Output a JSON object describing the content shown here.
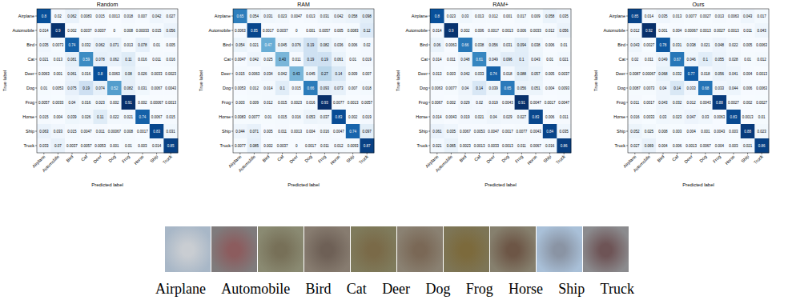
{
  "chart_data": [
    {
      "type": "heatmap",
      "title": "Random",
      "x_label": "Predicted label",
      "y_label": "True label",
      "x_categories": [
        "Airplane",
        "Automobile",
        "Bird",
        "Cat",
        "Deer",
        "Dog",
        "Frog",
        "Horse",
        "Ship",
        "Truck"
      ],
      "y_categories": [
        "Airplane",
        "Automobile",
        "Bird",
        "Cat",
        "Deer",
        "Dog",
        "Frog",
        "Horse",
        "Ship",
        "Truck"
      ],
      "data_labels": true,
      "cells": [
        [
          0.8,
          0.02,
          0.062,
          0.0083,
          0.015,
          0.0013,
          0.018,
          0.007,
          0.042,
          0.027
        ],
        [
          0.014,
          0.9,
          0.002,
          0.0037,
          0.0037,
          0,
          0.008,
          0.00033,
          0.015,
          0.056
        ],
        [
          0.035,
          0.0073,
          0.74,
          0.032,
          0.062,
          0.071,
          0.013,
          0.078,
          0.01,
          0.005
        ],
        [
          0.021,
          0.013,
          0.081,
          0.59,
          0.078,
          0.062,
          0.11,
          0.016,
          0.011,
          0.016
        ],
        [
          0.0063,
          0.001,
          0.061,
          0.016,
          0.8,
          0.0063,
          0.08,
          0.026,
          0.0033,
          0.0023
        ],
        [
          0.01,
          0.0053,
          0.075,
          0.19,
          0.074,
          0.52,
          0.082,
          0.031,
          0.0067,
          0.0043
        ],
        [
          0.0057,
          0.0033,
          0.04,
          0.016,
          0.023,
          0.002,
          0.91,
          0.002,
          0.00067,
          0.0013
        ],
        [
          0.015,
          0.004,
          0.039,
          0.026,
          0.11,
          0.022,
          0.021,
          0.74,
          0.0067,
          0.015
        ],
        [
          0.063,
          0.033,
          0.015,
          0.0047,
          0.011,
          0.00067,
          0.008,
          0.0017,
          0.83,
          0.031
        ],
        [
          0.033,
          0.07,
          0.0037,
          0.0057,
          0.0053,
          0.001,
          0.01,
          0.003,
          0.014,
          0.85
        ]
      ]
    },
    {
      "type": "heatmap",
      "title": "RAM",
      "x_label": "Predicted label",
      "y_label": "True label",
      "x_categories": [
        "Airplane",
        "Automobile",
        "Bird",
        "Cat",
        "Deer",
        "Dog",
        "Frog",
        "Horse",
        "Ship",
        "Truck"
      ],
      "y_categories": [
        "Airplane",
        "Automobile",
        "Bird",
        "Cat",
        "Deer",
        "Dog",
        "Frog",
        "Horse",
        "Ship",
        "Truck"
      ],
      "data_labels": true,
      "cells": [
        [
          0.65,
          0.054,
          0.031,
          0.023,
          0.0047,
          0.013,
          0.031,
          0.042,
          0.058,
          0.098
        ],
        [
          0.0063,
          0.85,
          0.0017,
          0.0037,
          0,
          0.001,
          0.0057,
          0.005,
          0.0083,
          0.12
        ],
        [
          0.054,
          0.021,
          0.47,
          0.045,
          0.076,
          0.19,
          0.082,
          0.036,
          0.006,
          0.02
        ],
        [
          0.0047,
          0.042,
          0.025,
          0.43,
          0.011,
          0.19,
          0.19,
          0.061,
          0.01,
          0.019
        ],
        [
          0.015,
          0.0063,
          0.034,
          0.042,
          0.43,
          0.045,
          0.27,
          0.14,
          0.009,
          0.007
        ],
        [
          0.0053,
          0.012,
          0.014,
          0.1,
          0.015,
          0.66,
          0.093,
          0.073,
          0.007,
          0.018
        ],
        [
          0.003,
          0.009,
          0.012,
          0.015,
          0.0023,
          0.016,
          0.93,
          0.0077,
          0.0013,
          0.0057
        ],
        [
          0.0083,
          0.0077,
          0.01,
          0.015,
          0.016,
          0.053,
          0.037,
          0.83,
          0.002,
          0.019
        ],
        [
          0.044,
          0.071,
          0.005,
          0.011,
          0.0013,
          0.004,
          0.016,
          0.0047,
          0.74,
          0.097
        ],
        [
          0.0077,
          0.085,
          0.002,
          0.0037,
          0,
          0.0017,
          0.011,
          0.012,
          0.0093,
          0.87
        ]
      ]
    },
    {
      "type": "heatmap",
      "title": "RAM+",
      "x_label": "Predicted label",
      "y_label": "True label",
      "x_categories": [
        "Airplane",
        "Automobile",
        "Bird",
        "Cat",
        "Deer",
        "Dog",
        "Frog",
        "Horse",
        "Ship",
        "Truck"
      ],
      "y_categories": [
        "Airplane",
        "Automobile",
        "Bird",
        "Cat",
        "Deer",
        "Dog",
        "Frog",
        "Horse",
        "Ship",
        "Truck"
      ],
      "data_labels": true,
      "cells": [
        [
          0.8,
          0.023,
          0.03,
          0.013,
          0.012,
          0.001,
          0.017,
          0.009,
          0.058,
          0.035
        ],
        [
          0.014,
          0.9,
          0.002,
          0.006,
          0.0017,
          0.0013,
          0.006,
          0.0033,
          0.012,
          0.056
        ],
        [
          0.06,
          0.0063,
          0.66,
          0.038,
          0.056,
          0.031,
          0.094,
          0.038,
          0.006,
          0.01
        ],
        [
          0.014,
          0.011,
          0.048,
          0.61,
          0.049,
          0.096,
          0.1,
          0.043,
          0.01,
          0.021
        ],
        [
          0.013,
          0.003,
          0.042,
          0.033,
          0.74,
          0.018,
          0.088,
          0.057,
          0.005,
          0.0037
        ],
        [
          0.0063,
          0.0077,
          0.04,
          0.14,
          0.039,
          0.65,
          0.056,
          0.051,
          0.004,
          0.0093
        ],
        [
          0.0067,
          0.002,
          0.029,
          0.02,
          0.019,
          0.0043,
          0.91,
          0.0047,
          0.0017,
          0.0047
        ],
        [
          0.014,
          0.0043,
          0.019,
          0.021,
          0.04,
          0.029,
          0.027,
          0.83,
          0.006,
          0.011
        ],
        [
          0.061,
          0.035,
          0.0067,
          0.0053,
          0.0047,
          0.0017,
          0.0077,
          0.0043,
          0.84,
          0.035
        ],
        [
          0.021,
          0.065,
          0.0023,
          0.0013,
          0.0033,
          0.0013,
          0.011,
          0.0067,
          0.016,
          0.86
        ]
      ]
    },
    {
      "type": "heatmap",
      "title": "Ours",
      "x_label": "Predicted label",
      "y_label": "True label",
      "x_categories": [
        "Airplane",
        "Automobile",
        "Bird",
        "Cat",
        "Deer",
        "Dog",
        "Frog",
        "Horse",
        "Ship",
        "Truck"
      ],
      "y_categories": [
        "Airplane",
        "Automobile",
        "Bird",
        "Cat",
        "Deer",
        "Dog",
        "Frog",
        "Horse",
        "Ship",
        "Truck"
      ],
      "data_labels": true,
      "cells": [
        [
          0.85,
          0.014,
          0.035,
          0.013,
          0.0077,
          0.0027,
          0.013,
          0.0063,
          0.043,
          0.017
        ],
        [
          0.012,
          0.92,
          0.001,
          0.004,
          0.00067,
          0.0013,
          0.0027,
          0.0013,
          0.011,
          0.043
        ],
        [
          0.043,
          0.0027,
          0.78,
          0.031,
          0.038,
          0.021,
          0.048,
          0.022,
          0.005,
          0.0063
        ],
        [
          0.02,
          0.011,
          0.049,
          0.67,
          0.046,
          0.1,
          0.055,
          0.028,
          0.01,
          0.012
        ],
        [
          0.0087,
          0.00067,
          0.068,
          0.032,
          0.77,
          0.018,
          0.056,
          0.041,
          0.004,
          0.0013
        ],
        [
          0.0087,
          0.0073,
          0.04,
          0.14,
          0.033,
          0.68,
          0.033,
          0.044,
          0.006,
          0.0063
        ],
        [
          0.011,
          0.0017,
          0.043,
          0.032,
          0.012,
          0.0043,
          0.88,
          0.0027,
          0.002,
          0.0027
        ],
        [
          0.016,
          0.0033,
          0.03,
          0.023,
          0.047,
          0.03,
          0.0063,
          0.83,
          0.0013,
          0.01
        ],
        [
          0.052,
          0.025,
          0.008,
          0.003,
          0.004,
          0.001,
          0.0043,
          0.003,
          0.88,
          0.023
        ],
        [
          0.027,
          0.069,
          0.004,
          0.006,
          0.0013,
          0.0067,
          0.004,
          0.003,
          0.021,
          0.86
        ]
      ]
    }
  ],
  "images": [
    {
      "label": "Airplane",
      "colors": [
        "#c9cdd2",
        "#a8b7c7"
      ]
    },
    {
      "label": "Automobile",
      "colors": [
        "#8c5c5e",
        "#7f7b7c"
      ]
    },
    {
      "label": "Bird",
      "colors": [
        "#777058",
        "#8a8a72"
      ]
    },
    {
      "label": "Cat",
      "colors": [
        "#6e6056",
        "#877c70"
      ]
    },
    {
      "label": "Deer",
      "colors": [
        "#7a6a48",
        "#7f7b5c"
      ]
    },
    {
      "label": "Dog",
      "colors": [
        "#7a6856",
        "#8a8172"
      ]
    },
    {
      "label": "Frog",
      "colors": [
        "#7c6a3c",
        "#7d7556"
      ]
    },
    {
      "label": "Horse",
      "colors": [
        "#6d5646",
        "#86806e"
      ]
    },
    {
      "label": "Ship",
      "colors": [
        "#8a94a4",
        "#a9c0d8"
      ]
    },
    {
      "label": "Truck",
      "colors": [
        "#6e5456",
        "#8b8b8e"
      ]
    }
  ]
}
